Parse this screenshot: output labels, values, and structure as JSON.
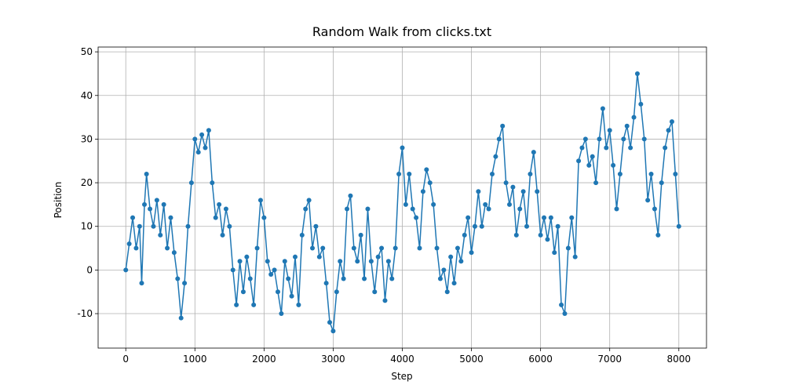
{
  "chart_data": {
    "type": "line",
    "title": "Random Walk from clicks.txt",
    "x_label": "Step",
    "y_label": "Position",
    "x": [
      0,
      50,
      100,
      150,
      200,
      230,
      270,
      300,
      350,
      400,
      450,
      500,
      550,
      600,
      650,
      700,
      750,
      800,
      850,
      900,
      950,
      1000,
      1050,
      1100,
      1150,
      1200,
      1250,
      1300,
      1350,
      1400,
      1450,
      1500,
      1550,
      1600,
      1650,
      1700,
      1750,
      1800,
      1850,
      1900,
      1950,
      2000,
      2050,
      2100,
      2150,
      2200,
      2250,
      2300,
      2350,
      2400,
      2450,
      2500,
      2550,
      2600,
      2650,
      2700,
      2750,
      2800,
      2850,
      2900,
      2950,
      3000,
      3050,
      3100,
      3150,
      3200,
      3250,
      3300,
      3350,
      3400,
      3450,
      3500,
      3550,
      3600,
      3650,
      3700,
      3750,
      3800,
      3850,
      3900,
      3950,
      4000,
      4050,
      4100,
      4150,
      4200,
      4250,
      4300,
      4350,
      4400,
      4450,
      4500,
      4550,
      4600,
      4650,
      4700,
      4750,
      4800,
      4850,
      4900,
      4950,
      5000,
      5050,
      5100,
      5150,
      5200,
      5250,
      5300,
      5350,
      5400,
      5450,
      5500,
      5550,
      5600,
      5650,
      5700,
      5750,
      5800,
      5850,
      5900,
      5950,
      6000,
      6050,
      6100,
      6150,
      6200,
      6250,
      6300,
      6350,
      6400,
      6450,
      6500,
      6550,
      6600,
      6650,
      6700,
      6750,
      6800,
      6850,
      6900,
      6950,
      7000,
      7050,
      7100,
      7150,
      7200,
      7250,
      7300,
      7350,
      7400,
      7450,
      7500,
      7550,
      7600,
      7650,
      7700,
      7750,
      7800,
      7850,
      7900,
      7950,
      8000
    ],
    "series": [
      {
        "name": "Position",
        "color": "#1f77b4",
        "values": [
          0,
          6,
          12,
          5,
          10,
          -3,
          15,
          22,
          14,
          10,
          16,
          8,
          15,
          5,
          12,
          4,
          -2,
          -11,
          -3,
          10,
          20,
          30,
          27,
          31,
          28,
          32,
          20,
          12,
          15,
          8,
          14,
          10,
          0,
          -8,
          2,
          -5,
          3,
          -2,
          -8,
          5,
          16,
          12,
          2,
          -1,
          0,
          -5,
          -10,
          2,
          -2,
          -6,
          3,
          -8,
          8,
          14,
          16,
          5,
          10,
          3,
          5,
          -3,
          -12,
          -14,
          -5,
          2,
          -2,
          14,
          17,
          5,
          2,
          8,
          -2,
          14,
          2,
          -5,
          3,
          5,
          -7,
          2,
          -2,
          5,
          22,
          28,
          15,
          22,
          14,
          12,
          5,
          18,
          23,
          20,
          15,
          5,
          -2,
          0,
          -5,
          3,
          -3,
          5,
          2,
          8,
          12,
          4,
          10,
          18,
          10,
          15,
          14,
          22,
          26,
          30,
          33,
          20,
          15,
          19,
          8,
          14,
          18,
          10,
          22,
          27,
          18,
          8,
          12,
          7,
          12,
          4,
          10,
          -8,
          -10,
          5,
          12,
          3,
          25,
          28,
          30,
          24,
          26,
          20,
          30,
          37,
          28,
          32,
          24,
          14,
          22,
          30,
          33,
          28,
          35,
          45,
          38,
          30,
          16,
          22,
          14,
          8,
          20,
          28,
          32,
          34,
          22,
          10
        ]
      }
    ],
    "xlim": [
      -400,
      8400
    ],
    "ylim": [
      -17.9,
      51.1
    ],
    "xticks": [
      0,
      1000,
      2000,
      3000,
      4000,
      5000,
      6000,
      7000,
      8000
    ],
    "yticks": [
      -10,
      0,
      10,
      20,
      30,
      40,
      50
    ],
    "grid": true
  }
}
